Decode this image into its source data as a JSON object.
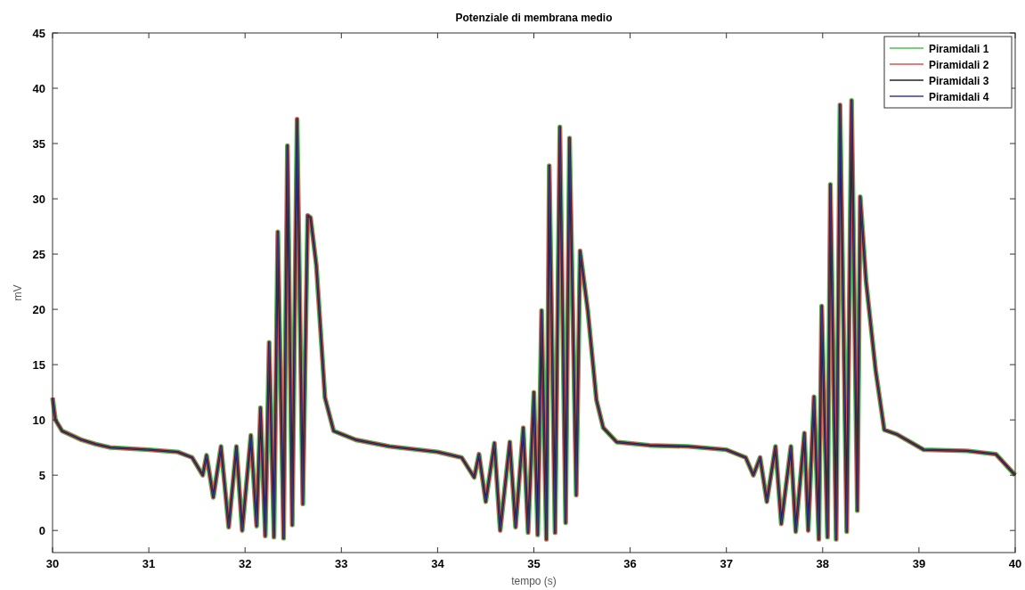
{
  "chart_data": {
    "type": "line",
    "title": "Potenziale di membrana medio",
    "xlabel": "tempo (s)",
    "ylabel": "mV",
    "x": [
      30.0,
      30.03,
      30.1,
      30.2,
      30.3,
      30.45,
      30.6,
      30.8,
      31.0,
      31.3,
      31.45,
      31.56,
      31.6,
      31.67,
      31.75,
      31.83,
      31.91,
      31.97,
      32.06,
      32.12,
      32.16,
      32.21,
      32.25,
      32.3,
      32.34,
      32.4,
      32.44,
      32.49,
      32.54,
      32.6,
      32.65,
      32.68,
      32.74,
      32.83,
      32.92,
      33.15,
      33.5,
      33.8,
      34.0,
      34.25,
      34.38,
      34.43,
      34.5,
      34.59,
      34.65,
      34.75,
      34.81,
      34.89,
      34.94,
      35.0,
      35.04,
      35.08,
      35.13,
      35.16,
      35.22,
      35.27,
      35.33,
      35.37,
      35.44,
      35.48,
      35.56,
      35.65,
      35.72,
      35.86,
      36.2,
      36.6,
      37.0,
      37.2,
      37.28,
      37.35,
      37.42,
      37.51,
      37.57,
      37.67,
      37.72,
      37.81,
      37.85,
      37.91,
      37.96,
      37.99,
      38.05,
      38.08,
      38.14,
      38.18,
      38.25,
      38.3,
      38.36,
      38.39,
      38.45,
      38.55,
      38.64,
      38.77,
      39.05,
      39.5,
      39.8,
      40.0
    ],
    "series": [
      {
        "name": "Piramidali 1",
        "color": "#4fc24f",
        "values": [
          12,
          10,
          9,
          8.6,
          8.2,
          7.8,
          7.5,
          7.4,
          7.3,
          7.1,
          6.6,
          5.0,
          6.8,
          3.0,
          7.6,
          0.3,
          7.6,
          0,
          8.6,
          0.4,
          11.1,
          -0.5,
          17,
          -0.6,
          27,
          -0.7,
          34.8,
          0.5,
          37.2,
          2.4,
          28.5,
          28.3,
          24,
          12,
          9,
          8.2,
          7.6,
          7.3,
          7.1,
          6.6,
          4.8,
          6.9,
          2.6,
          7.9,
          0,
          8.0,
          0.3,
          9.3,
          -0.2,
          12.5,
          -0.4,
          19.9,
          -0.8,
          33,
          -0.2,
          36.5,
          0.7,
          35.5,
          3.2,
          25.3,
          19.9,
          11.8,
          9.3,
          8.0,
          7.7,
          7.6,
          7.3,
          6.6,
          5.0,
          6.6,
          2.6,
          7.6,
          0.6,
          7.6,
          -0.1,
          8.8,
          0,
          12.1,
          -0.8,
          20.3,
          -0.6,
          31.3,
          -0.8,
          38.5,
          -0.1,
          38.9,
          1.8,
          30.2,
          22.6,
          14.5,
          9.1,
          8.7,
          7.3,
          7.2,
          6.9,
          5.0
        ]
      },
      {
        "name": "Piramidali 2",
        "color": "#d9534f",
        "values": [
          12,
          10,
          9,
          8.6,
          8.2,
          7.8,
          7.5,
          7.4,
          7.3,
          7.1,
          6.6,
          5.0,
          6.8,
          3.0,
          7.6,
          0.3,
          7.6,
          0,
          8.6,
          0.4,
          11.1,
          -0.5,
          17,
          -0.6,
          27,
          -0.7,
          34.8,
          0.5,
          37.2,
          2.4,
          28.5,
          28.3,
          24,
          12,
          9,
          8.2,
          7.6,
          7.3,
          7.1,
          6.6,
          4.8,
          6.9,
          2.6,
          7.9,
          0,
          8.0,
          0.3,
          9.3,
          -0.2,
          12.5,
          -0.4,
          19.9,
          -0.8,
          33,
          -0.2,
          36.5,
          0.7,
          35.5,
          3.2,
          25.3,
          19.9,
          11.8,
          9.3,
          8.0,
          7.7,
          7.6,
          7.3,
          6.6,
          5.0,
          6.6,
          2.6,
          7.6,
          0.6,
          7.6,
          -0.1,
          8.8,
          0,
          12.1,
          -0.8,
          20.3,
          -0.6,
          31.3,
          -0.8,
          38.5,
          -0.1,
          38.9,
          1.8,
          30.2,
          22.6,
          14.5,
          9.1,
          8.7,
          7.3,
          7.2,
          6.9,
          5.0
        ]
      },
      {
        "name": "Piramidali 3",
        "color": "#222222",
        "values": [
          12,
          10,
          9,
          8.6,
          8.2,
          7.8,
          7.5,
          7.4,
          7.3,
          7.1,
          6.6,
          5.0,
          6.8,
          3.0,
          7.6,
          0.3,
          7.6,
          0,
          8.6,
          0.4,
          11.1,
          -0.5,
          17,
          -0.6,
          27,
          -0.7,
          34.8,
          0.5,
          37.2,
          2.4,
          28.5,
          28.3,
          24,
          12,
          9,
          8.2,
          7.6,
          7.3,
          7.1,
          6.6,
          4.8,
          6.9,
          2.6,
          7.9,
          0,
          8.0,
          0.3,
          9.3,
          -0.2,
          12.5,
          -0.4,
          19.9,
          -0.8,
          33,
          -0.2,
          36.5,
          0.7,
          35.5,
          3.2,
          25.3,
          19.9,
          11.8,
          9.3,
          8.0,
          7.7,
          7.6,
          7.3,
          6.6,
          5.0,
          6.6,
          2.6,
          7.6,
          0.6,
          7.6,
          -0.1,
          8.8,
          0,
          12.1,
          -0.8,
          20.3,
          -0.6,
          31.3,
          -0.8,
          38.5,
          -0.1,
          38.9,
          1.8,
          30.2,
          22.6,
          14.5,
          9.1,
          8.7,
          7.3,
          7.2,
          6.9,
          5.0
        ]
      },
      {
        "name": "Piramidali 4",
        "color": "#3a3aa8",
        "values": [
          12,
          10,
          9,
          8.6,
          8.2,
          7.8,
          7.5,
          7.4,
          7.3,
          7.1,
          6.6,
          5.0,
          6.8,
          3.0,
          7.6,
          0.3,
          7.6,
          0,
          8.6,
          0.4,
          11.1,
          -0.5,
          17,
          -0.6,
          27,
          -0.7,
          34.8,
          0.5,
          37.2,
          2.4,
          28.5,
          28.3,
          24,
          12,
          9,
          8.2,
          7.6,
          7.3,
          7.1,
          6.6,
          4.8,
          6.9,
          2.6,
          7.9,
          0,
          8.0,
          0.3,
          9.3,
          -0.2,
          12.5,
          -0.4,
          19.9,
          -0.8,
          33,
          -0.2,
          36.5,
          0.7,
          35.5,
          3.2,
          25.3,
          19.9,
          11.8,
          9.3,
          8.0,
          7.7,
          7.6,
          7.3,
          6.6,
          5.0,
          6.6,
          2.6,
          7.6,
          0.6,
          7.6,
          -0.1,
          8.8,
          0,
          12.1,
          -0.8,
          20.3,
          -0.6,
          31.3,
          -0.8,
          38.5,
          -0.1,
          38.9,
          1.8,
          30.2,
          22.6,
          14.5,
          9.1,
          8.7,
          7.3,
          7.2,
          6.9,
          5.0
        ]
      }
    ],
    "xlim": [
      30,
      40
    ],
    "xticks": [
      30,
      31,
      32,
      33,
      34,
      35,
      36,
      37,
      38,
      39,
      40
    ],
    "ylim": [
      -2,
      45
    ],
    "yticks": [
      0,
      5,
      10,
      15,
      20,
      25,
      30,
      35,
      40,
      45
    ],
    "grid": false,
    "legend": "top right"
  }
}
